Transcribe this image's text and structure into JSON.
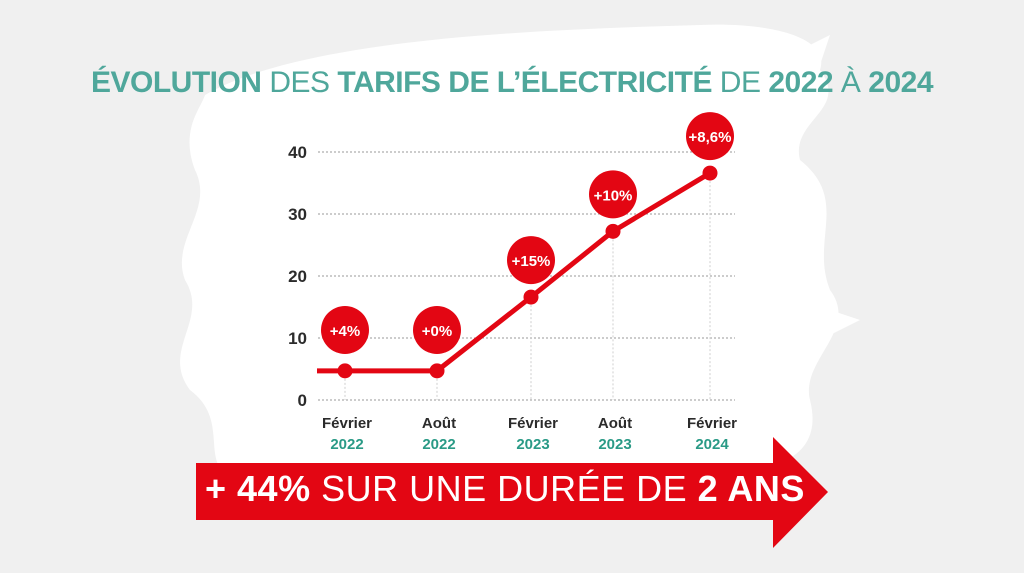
{
  "title": {
    "part1": "ÉVOLUTION",
    "part2": " DES ",
    "part3": "TARIFS DE L’ÉLECTRICITÉ",
    "part4": " DE ",
    "part5": "2022",
    "part6": " À ",
    "part7": "2024"
  },
  "banner": {
    "bold1": "+ 44%",
    "light": " SUR UNE DURÉE DE ",
    "bold2": "2 ANS"
  },
  "colors": {
    "teal": "#4fa79b",
    "red": "#e30613",
    "year": "#2a9a86"
  },
  "chart_data": {
    "type": "line",
    "title": "Évolution des tarifs de l’électricité de 2022 à 2024",
    "categories": [
      {
        "month": "Février",
        "year": "2022"
      },
      {
        "month": "Août",
        "year": "2022"
      },
      {
        "month": "Février",
        "year": "2023"
      },
      {
        "month": "Août",
        "year": "2023"
      },
      {
        "month": "Février",
        "year": "2024"
      }
    ],
    "values": [
      4.7,
      4.7,
      16.6,
      27.2,
      36.6
    ],
    "labels": [
      "+4%",
      "+0%",
      "+15%",
      "+10%",
      "+8,6%"
    ],
    "yticks": [
      "0",
      "10",
      "20",
      "30",
      "40"
    ],
    "ylim": [
      0,
      40
    ],
    "grid": true,
    "xlabel": "",
    "ylabel": ""
  }
}
